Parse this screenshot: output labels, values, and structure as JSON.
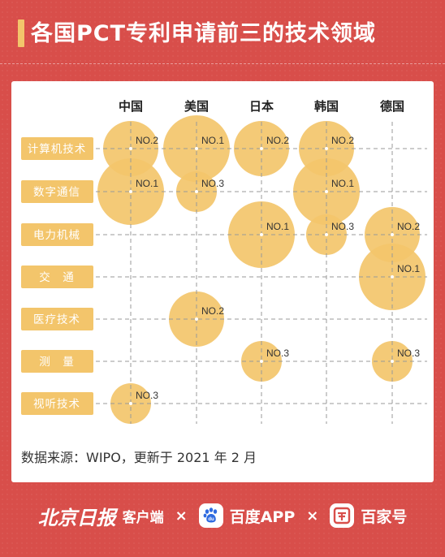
{
  "title": "各国PCT专利申请前三的技术领域",
  "source": "数据来源：WIPO，更新于 2021 年 2 月",
  "footer": {
    "brand1": "北京日报",
    "brand1_suffix": "客户端",
    "sep": "×",
    "brand2": "百度APP",
    "brand3": "百家号"
  },
  "colors": {
    "background": "#D84E4A",
    "accent": "#F3C56B",
    "bubble": "#F3C56B",
    "card": "#FFFFFF",
    "label_text": "#FFFFFF",
    "bubble_text": "#333333",
    "grid": "#999999"
  },
  "chart_data": {
    "type": "bubble-matrix",
    "countries": [
      "中国",
      "美国",
      "日本",
      "韩国",
      "德国"
    ],
    "fields": [
      "计算机技术",
      "数字通信",
      "电力机械",
      "交　通",
      "医疗技术",
      "测　量",
      "视听技术"
    ],
    "rank_size": {
      "1": "large",
      "2": "medium",
      "3": "small"
    },
    "entries": [
      {
        "country": "中国",
        "field": "数字通信",
        "rank": "NO.1"
      },
      {
        "country": "中国",
        "field": "计算机技术",
        "rank": "NO.2"
      },
      {
        "country": "中国",
        "field": "视听技术",
        "rank": "NO.3"
      },
      {
        "country": "美国",
        "field": "计算机技术",
        "rank": "NO.1"
      },
      {
        "country": "美国",
        "field": "医疗技术",
        "rank": "NO.2"
      },
      {
        "country": "美国",
        "field": "数字通信",
        "rank": "NO.3"
      },
      {
        "country": "日本",
        "field": "电力机械",
        "rank": "NO.1"
      },
      {
        "country": "日本",
        "field": "计算机技术",
        "rank": "NO.2"
      },
      {
        "country": "日本",
        "field": "测　量",
        "rank": "NO.3"
      },
      {
        "country": "韩国",
        "field": "数字通信",
        "rank": "NO.1"
      },
      {
        "country": "韩国",
        "field": "计算机技术",
        "rank": "NO.2"
      },
      {
        "country": "韩国",
        "field": "电力机械",
        "rank": "NO.3"
      },
      {
        "country": "德国",
        "field": "交　通",
        "rank": "NO.1"
      },
      {
        "country": "德国",
        "field": "电力机械",
        "rank": "NO.2"
      },
      {
        "country": "德国",
        "field": "测　量",
        "rank": "NO.3"
      }
    ]
  }
}
